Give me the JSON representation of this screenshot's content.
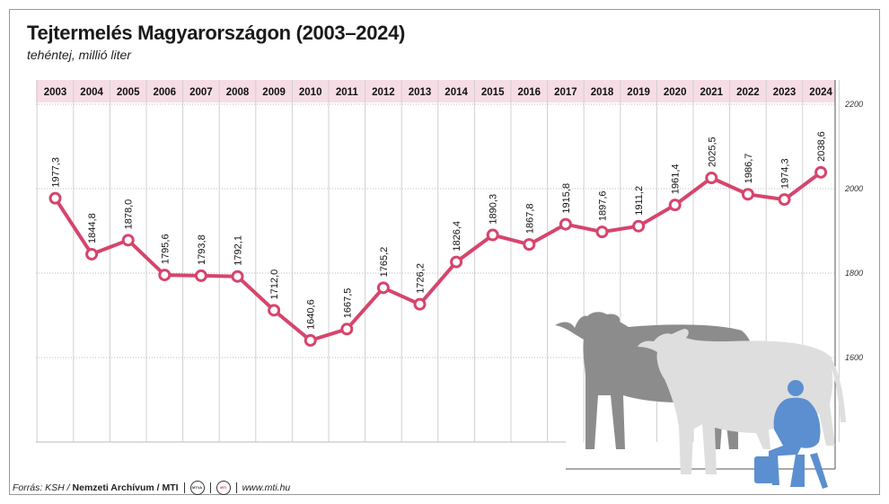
{
  "title": "Tejtermelés Magyarországon (2003–2024)",
  "subtitle": "tehéntej, millió liter",
  "footer": {
    "source_prefix": "Forrás: KSH / ",
    "source_bold": "Nemzeti Archívum / MTI",
    "logo1": "MTVA",
    "logo2": "MTI",
    "url": "www.mti.hu"
  },
  "colors": {
    "line": "#d6456c",
    "band": "#f6dde5",
    "cow_dark": "#8c8c8c",
    "cow_light": "#e0e0e0",
    "farmer": "#5b8fd0"
  },
  "chart_data": {
    "type": "line",
    "title": "Tejtermelés Magyarországon (2003–2024)",
    "subtitle": "tehéntej, millió liter",
    "x": [
      "2003",
      "2004",
      "2005",
      "2006",
      "2007",
      "2008",
      "2009",
      "2010",
      "2011",
      "2012",
      "2013",
      "2014",
      "2015",
      "2016",
      "2017",
      "2018",
      "2019",
      "2020",
      "2021",
      "2022",
      "2023",
      "2024"
    ],
    "values": [
      1977.3,
      1844.8,
      1878.0,
      1795.6,
      1793.8,
      1792.1,
      1712.0,
      1640.6,
      1667.5,
      1765.2,
      1726.2,
      1826.4,
      1890.3,
      1867.8,
      1915.8,
      1897.6,
      1911.2,
      1961.4,
      2025.5,
      1986.7,
      1974.3,
      2038.6
    ],
    "labels": [
      "1977,3",
      "1844,8",
      "1878,0",
      "1795,6",
      "1793,8",
      "1792,1",
      "1712,0",
      "1640,6",
      "1667,5",
      "1765,2",
      "1726,2",
      "1826,4",
      "1890,3",
      "1867,8",
      "1915,8",
      "1897,6",
      "1911,2",
      "1961,4",
      "2025,5",
      "1986,7",
      "1974,3",
      "2038,6"
    ],
    "y_ticks": [
      "2200",
      "2000",
      "1800",
      "1600"
    ],
    "ylim": [
      1400,
      2200
    ],
    "grid": true
  }
}
